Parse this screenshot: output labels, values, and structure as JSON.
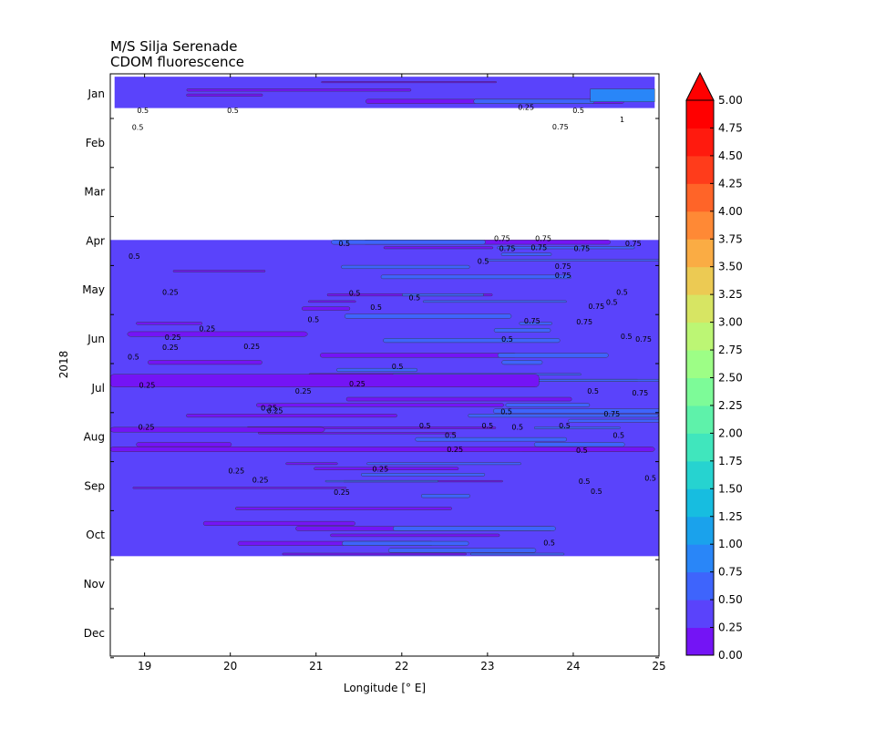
{
  "chart_data": {
    "type": "heatmap",
    "title": "M/S Silja Serenade",
    "subtitle": "CDOM fluorescence",
    "xlabel": "Longitude [° E]",
    "ylabel": "2018",
    "xlim": [
      18.6,
      25.0
    ],
    "x_ticks": [
      19,
      20,
      21,
      22,
      23,
      24,
      25
    ],
    "y_ticks": [
      "Jan",
      "Feb",
      "Mar",
      "Apr",
      "May",
      "Jun",
      "Jul",
      "Aug",
      "Sep",
      "Oct",
      "Nov",
      "Dec"
    ],
    "data_coverage": [
      {
        "period": "Jan",
        "lon_range": [
          18.65,
          24.95
        ]
      },
      {
        "period": "Apr – Oct",
        "lon_range": [
          18.6,
          25.0
        ]
      }
    ],
    "colorbar": {
      "min": 0.0,
      "max": 5.0,
      "step": 0.25,
      "extend": "max",
      "tick_labels": [
        "0.00",
        "0.25",
        "0.50",
        "0.75",
        "1.00",
        "1.25",
        "1.50",
        "1.75",
        "2.00",
        "2.25",
        "2.50",
        "2.75",
        "3.00",
        "3.25",
        "3.50",
        "3.75",
        "4.00",
        "4.25",
        "4.50",
        "4.75",
        "5.00"
      ],
      "colors": [
        "#7414f5",
        "#5a43fb",
        "#3e64fc",
        "#2986f8",
        "#1aa2ec",
        "#17bde0",
        "#26d3d0",
        "#40e6bd",
        "#5ef2aa",
        "#7dfb98",
        "#9dfe86",
        "#bcf674",
        "#d7e563",
        "#ecca53",
        "#faac44",
        "#ff8935",
        "#ff6428",
        "#ff3c1b",
        "#ff1a0e",
        "#ff0000"
      ]
    },
    "contour_labels": [
      {
        "text": "0.5",
        "lon": 18.98,
        "month": 0.33
      },
      {
        "text": "0.5",
        "lon": 20.03,
        "month": 0.33
      },
      {
        "text": "0.25",
        "lon": 23.45,
        "month": 0.27
      },
      {
        "text": "0.5",
        "lon": 24.06,
        "month": 0.33
      },
      {
        "text": "0.5",
        "lon": 18.92,
        "month": 0.68
      },
      {
        "text": "0.75",
        "lon": 23.85,
        "month": 0.67
      },
      {
        "text": "1",
        "lon": 24.57,
        "month": 0.52
      },
      {
        "text": "0.75",
        "lon": 23.17,
        "month": 2.95
      },
      {
        "text": "0.75",
        "lon": 23.65,
        "month": 2.95
      },
      {
        "text": "0.75",
        "lon": 23.23,
        "month": 3.15
      },
      {
        "text": "0.75",
        "lon": 23.6,
        "month": 3.13
      },
      {
        "text": "0.75",
        "lon": 24.1,
        "month": 3.15
      },
      {
        "text": "0.75",
        "lon": 24.7,
        "month": 3.05
      },
      {
        "text": "0.5",
        "lon": 21.33,
        "month": 3.05
      },
      {
        "text": "0.5",
        "lon": 18.88,
        "month": 3.31
      },
      {
        "text": "0.5",
        "lon": 22.95,
        "month": 3.41
      },
      {
        "text": "0.75",
        "lon": 23.88,
        "month": 3.51
      },
      {
        "text": "0.75",
        "lon": 23.88,
        "month": 3.7
      },
      {
        "text": "0.25",
        "lon": 19.3,
        "month": 4.04
      },
      {
        "text": "0.5",
        "lon": 21.45,
        "month": 4.06
      },
      {
        "text": "0.5",
        "lon": 22.15,
        "month": 4.15
      },
      {
        "text": "0.5",
        "lon": 24.57,
        "month": 4.04
      },
      {
        "text": "0.75",
        "lon": 24.27,
        "month": 4.33
      },
      {
        "text": "0.5",
        "lon": 24.45,
        "month": 4.25
      },
      {
        "text": "0.5",
        "lon": 21.7,
        "month": 4.35
      },
      {
        "text": "0.5",
        "lon": 20.97,
        "month": 4.6
      },
      {
        "text": "0.75",
        "lon": 23.52,
        "month": 4.63
      },
      {
        "text": "0.75",
        "lon": 24.13,
        "month": 4.65
      },
      {
        "text": "0.25",
        "lon": 19.73,
        "month": 4.79
      },
      {
        "text": "0.25",
        "lon": 19.33,
        "month": 4.96
      },
      {
        "text": "0.5",
        "lon": 23.23,
        "month": 5.0
      },
      {
        "text": "0.5",
        "lon": 24.62,
        "month": 4.94
      },
      {
        "text": "0.75",
        "lon": 24.82,
        "month": 5.0
      },
      {
        "text": "0.25",
        "lon": 19.3,
        "month": 5.17
      },
      {
        "text": "0.25",
        "lon": 20.25,
        "month": 5.15
      },
      {
        "text": "0.5",
        "lon": 18.87,
        "month": 5.36
      },
      {
        "text": "0.5",
        "lon": 21.95,
        "month": 5.56
      },
      {
        "text": "0.25",
        "lon": 19.03,
        "month": 5.94
      },
      {
        "text": "0.25",
        "lon": 21.48,
        "month": 5.91
      },
      {
        "text": "0.25",
        "lon": 20.85,
        "month": 6.06
      },
      {
        "text": "0.5",
        "lon": 24.23,
        "month": 6.06
      },
      {
        "text": "0.75",
        "lon": 24.78,
        "month": 6.1
      },
      {
        "text": "0.25",
        "lon": 20.45,
        "month": 6.4
      },
      {
        "text": "0.25",
        "lon": 20.52,
        "month": 6.46
      },
      {
        "text": "0.5",
        "lon": 23.22,
        "month": 6.48
      },
      {
        "text": "0.75",
        "lon": 24.45,
        "month": 6.52
      },
      {
        "text": "0.25",
        "lon": 19.02,
        "month": 6.79
      },
      {
        "text": "0.5",
        "lon": 22.27,
        "month": 6.77
      },
      {
        "text": "0.5",
        "lon": 23.0,
        "month": 6.77
      },
      {
        "text": "0.5",
        "lon": 23.35,
        "month": 6.79
      },
      {
        "text": "0.5",
        "lon": 23.9,
        "month": 6.77
      },
      {
        "text": "0.5",
        "lon": 22.57,
        "month": 6.96
      },
      {
        "text": "0.5",
        "lon": 24.53,
        "month": 6.96
      },
      {
        "text": "0.25",
        "lon": 22.62,
        "month": 7.25
      },
      {
        "text": "0.5",
        "lon": 24.1,
        "month": 7.27
      },
      {
        "text": "0.25",
        "lon": 20.07,
        "month": 7.69
      },
      {
        "text": "0.25",
        "lon": 21.75,
        "month": 7.65
      },
      {
        "text": "0.25",
        "lon": 20.35,
        "month": 7.87
      },
      {
        "text": "0.5",
        "lon": 24.9,
        "month": 7.83
      },
      {
        "text": "0.5",
        "lon": 24.13,
        "month": 7.9
      },
      {
        "text": "0.5",
        "lon": 24.27,
        "month": 8.1
      },
      {
        "text": "0.25",
        "lon": 21.3,
        "month": 8.12
      },
      {
        "text": "0.5",
        "lon": 23.72,
        "month": 9.15
      }
    ]
  }
}
